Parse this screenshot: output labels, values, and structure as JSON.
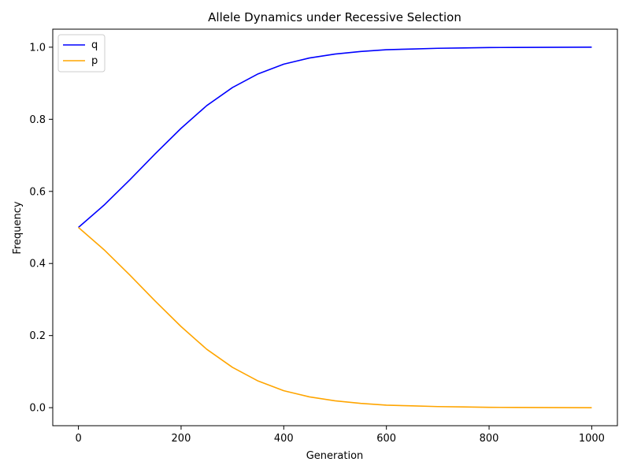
{
  "chart_data": {
    "type": "line",
    "title": "Allele Dynamics under Recessive Selection",
    "xlabel": "Generation",
    "ylabel": "Frequency",
    "xlim": [
      -50,
      1050
    ],
    "ylim": [
      -0.05,
      1.05
    ],
    "xticks": [
      0,
      200,
      400,
      600,
      800,
      1000
    ],
    "xtick_labels": [
      "0",
      "200",
      "400",
      "600",
      "800",
      "1000"
    ],
    "yticks": [
      0.0,
      0.2,
      0.4,
      0.6,
      0.8,
      1.0
    ],
    "ytick_labels": [
      "0.0",
      "0.2",
      "0.4",
      "0.6",
      "0.8",
      "1.0"
    ],
    "grid": false,
    "legend_position": "top-left",
    "x": [
      0,
      50,
      100,
      150,
      200,
      250,
      300,
      350,
      400,
      450,
      500,
      550,
      600,
      650,
      700,
      750,
      800,
      850,
      900,
      950,
      1000
    ],
    "series": [
      {
        "name": "q",
        "color": "#0000ff",
        "values": [
          0.5,
          0.562,
          0.632,
          0.705,
          0.775,
          0.838,
          0.888,
          0.926,
          0.953,
          0.97,
          0.981,
          0.988,
          0.993,
          0.995,
          0.997,
          0.998,
          0.999,
          0.9993,
          0.9996,
          0.9998,
          1.0
        ]
      },
      {
        "name": "p",
        "color": "#ffa500",
        "values": [
          0.5,
          0.438,
          0.368,
          0.295,
          0.225,
          0.162,
          0.112,
          0.074,
          0.047,
          0.03,
          0.019,
          0.012,
          0.007,
          0.005,
          0.003,
          0.002,
          0.001,
          0.0007,
          0.0004,
          0.0002,
          0.0
        ]
      }
    ]
  }
}
